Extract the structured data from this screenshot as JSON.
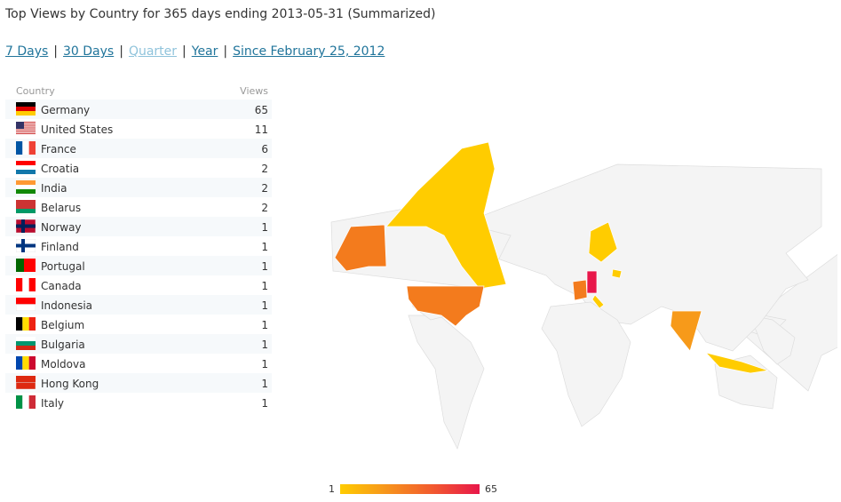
{
  "header": {
    "title": "Top Views by Country for 365 days ending 2013-05-31 (Summarized)"
  },
  "nav": {
    "links": [
      "7 Days",
      "30 Days",
      "Quarter",
      "Year",
      "Since February 25, 2012"
    ],
    "separator": "|"
  },
  "table": {
    "columns": [
      "Country",
      "Views"
    ],
    "rows": [
      [
        "Germany",
        65
      ],
      [
        "United States",
        11
      ],
      [
        "France",
        6
      ],
      [
        "Croatia",
        2
      ],
      [
        "India",
        2
      ],
      [
        "Belarus",
        2
      ],
      [
        "Norway",
        1
      ],
      [
        "Finland",
        1
      ],
      [
        "Portugal",
        1
      ],
      [
        "Canada",
        1
      ],
      [
        "Indonesia",
        1
      ],
      [
        "Belgium",
        1
      ],
      [
        "Bulgaria",
        1
      ],
      [
        "Moldova",
        1
      ],
      [
        "Hong Kong",
        1
      ],
      [
        "Italy",
        1
      ]
    ]
  },
  "legend": {
    "min": 1,
    "max": 65
  }
}
